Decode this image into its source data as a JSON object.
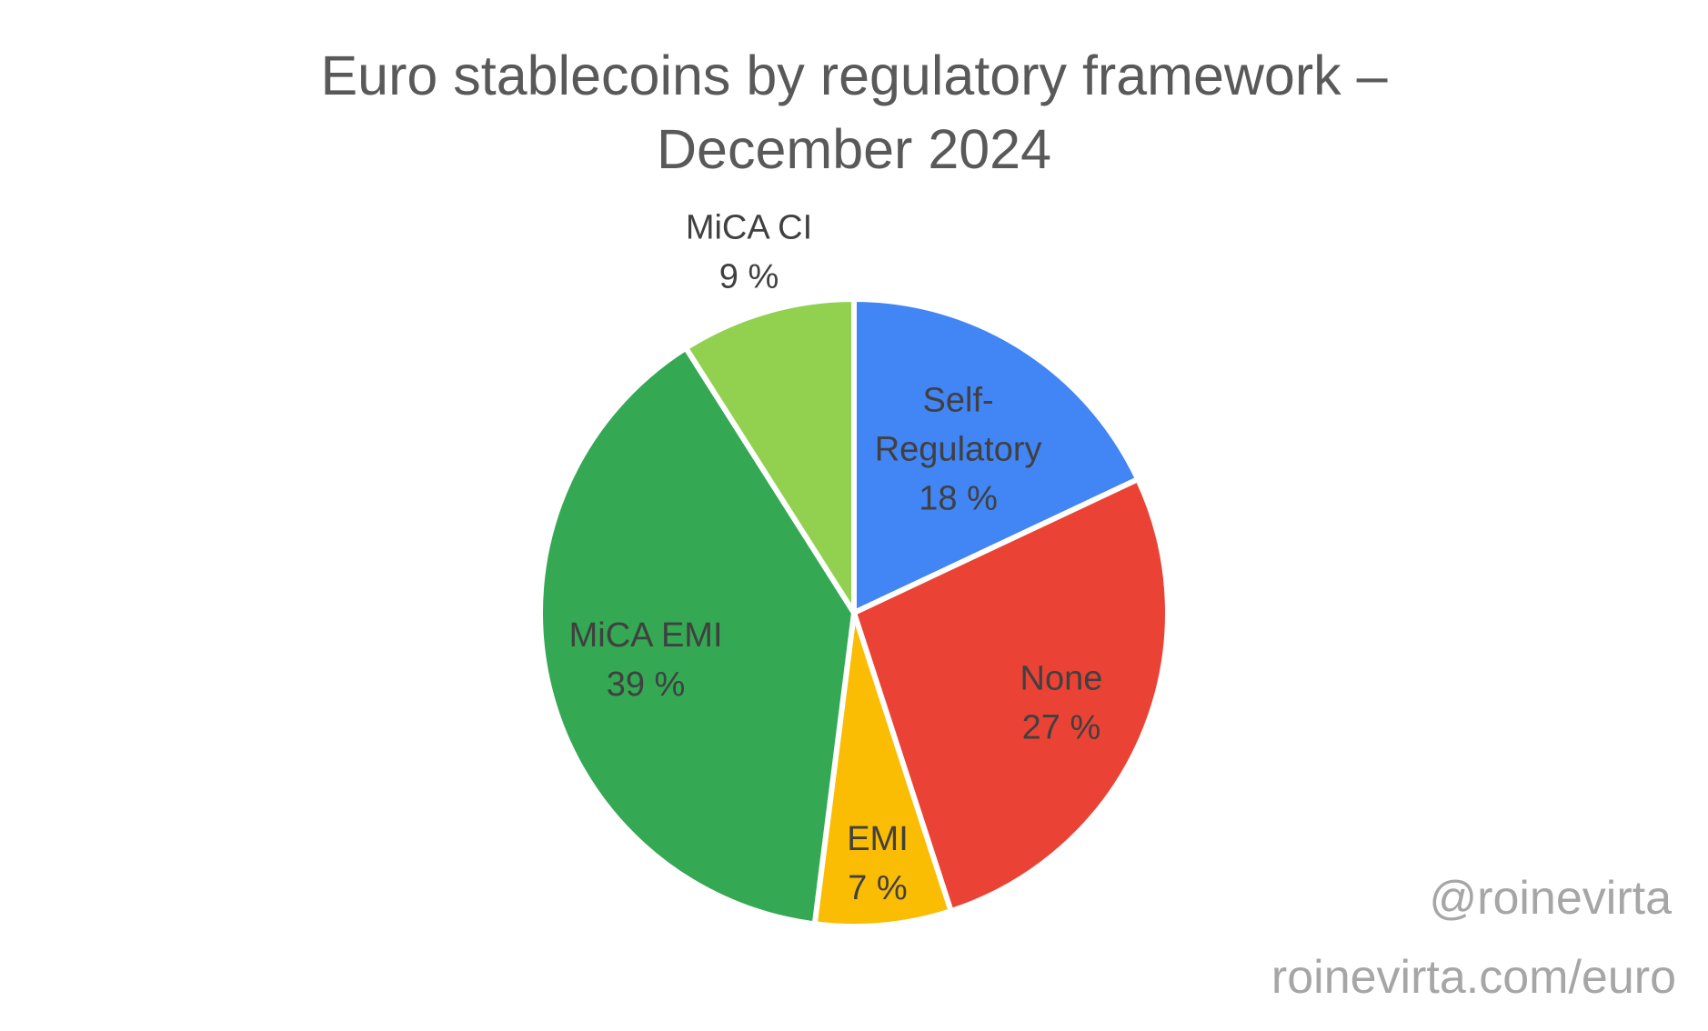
{
  "chart_data": {
    "type": "pie",
    "title_lines": [
      "Euro stablecoins by regulatory framework –",
      "December 2024"
    ],
    "start_angle": "top, clockwise",
    "legend": "none (data labels)",
    "slices": [
      {
        "label": "Self-Regulatory",
        "label_lines": [
          "Self-",
          "Regulatory"
        ],
        "value": 18,
        "value_label": "18 %",
        "color": "#4285F4"
      },
      {
        "label": "None",
        "label_lines": [
          "None"
        ],
        "value": 27,
        "value_label": "27 %",
        "color": "#EA4335"
      },
      {
        "label": "EMI",
        "label_lines": [
          "EMI"
        ],
        "value": 7,
        "value_label": "7 %",
        "color": "#FBBC04"
      },
      {
        "label": "MiCA EMI",
        "label_lines": [
          "MiCA EMI"
        ],
        "value": 39,
        "value_label": "39 %",
        "color": "#34A853"
      },
      {
        "label": "MiCA CI",
        "label_lines": [
          "MiCA CI"
        ],
        "value": 9,
        "value_label": "9 %",
        "color": "#92D050"
      }
    ]
  },
  "watermark": {
    "handle": "@roinevirta",
    "url": "roinevirta.com/euro"
  }
}
